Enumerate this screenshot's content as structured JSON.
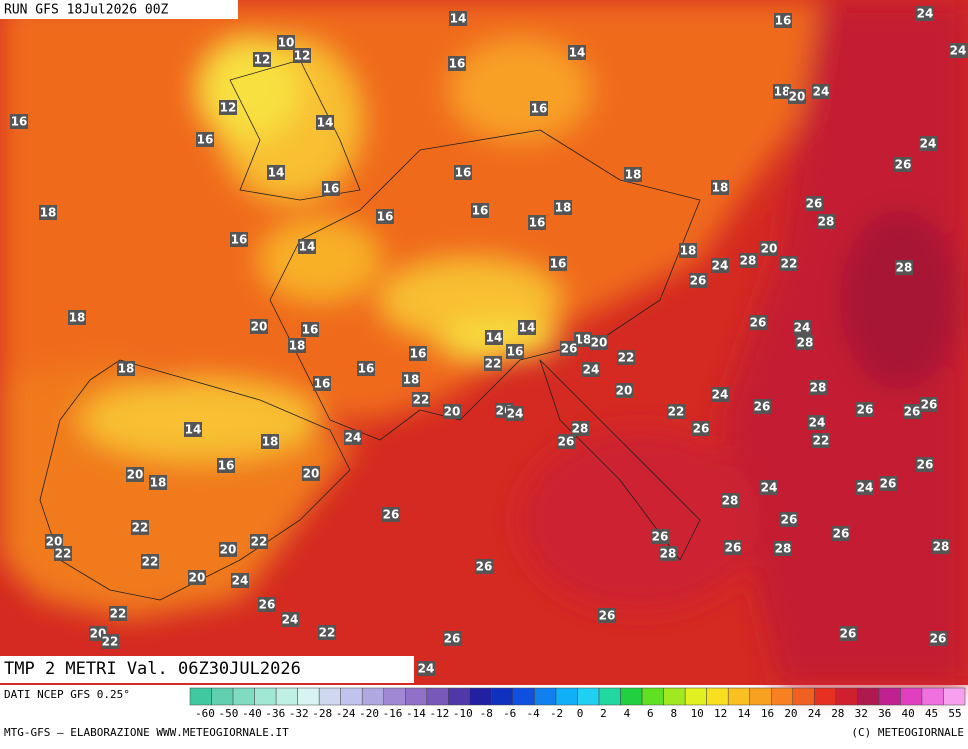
{
  "header": {
    "run": "RUN GFS 18Jul2026 00Z"
  },
  "map": {
    "labels": [
      14,
      16,
      24,
      10,
      12,
      12,
      14,
      16,
      24,
      12,
      14,
      16,
      16,
      18,
      20,
      24,
      16,
      24,
      14,
      16,
      16,
      18,
      18,
      26,
      18,
      16,
      16,
      16,
      18,
      26,
      28,
      16,
      14,
      18,
      20,
      24,
      28,
      22,
      26,
      28,
      16,
      18,
      20,
      16,
      18,
      26,
      24,
      28,
      14,
      14,
      18,
      20,
      26,
      16,
      16,
      18,
      22,
      22,
      16,
      24,
      16,
      18,
      20,
      28,
      24,
      22,
      26,
      20,
      26,
      24,
      22,
      26,
      26,
      26,
      24,
      22,
      14,
      18,
      24,
      28,
      26,
      26,
      16,
      20,
      18,
      20,
      26,
      24,
      24,
      26,
      26,
      28,
      26,
      22,
      26,
      20,
      22,
      22,
      20,
      26,
      28,
      26,
      28,
      28,
      22,
      26,
      20,
      24,
      26,
      26,
      22,
      24,
      20,
      22,
      22,
      26,
      26,
      26,
      24
    ]
  },
  "footer": {
    "variable": "TMP 2 METRI Val. 06Z30JUL2026",
    "source": "DATI NCEP GFS 0.25°",
    "credit": "MTG-GFS — ELABORAZIONE WWW.METEOGIORNALE.IT",
    "copyright": "(C) METEOGIORNALE"
  },
  "colorbar": {
    "labels": [
      -60,
      -50,
      -40,
      -36,
      -32,
      -28,
      -24,
      -20,
      -16,
      -14,
      -12,
      -10,
      -8,
      -6,
      -4,
      -2,
      0,
      2,
      4,
      6,
      8,
      10,
      12,
      14,
      16,
      20,
      24,
      28,
      32,
      36,
      40,
      45,
      55
    ],
    "colors": [
      "#40c8a0",
      "#60d0b0",
      "#80dcc0",
      "#a0e8d4",
      "#c0f0e4",
      "#d8f4f0",
      "#d0d8f0",
      "#c0c4ec",
      "#b0a8e0",
      "#a088d4",
      "#9070c8",
      "#7858b8",
      "#5038a8",
      "#2020a0",
      "#1030c0",
      "#1050e0",
      "#1080f0",
      "#10b0f8",
      "#20d0f0",
      "#20d8a0",
      "#20d040",
      "#60e020",
      "#a0e820",
      "#e0f020",
      "#f8e020",
      "#f8c020",
      "#f8a020",
      "#f88020",
      "#f06020",
      "#e83020",
      "#d02030",
      "#b01850",
      "#c02090",
      "#e040c0",
      "#f070e0",
      "#f8a0f0"
    ]
  }
}
